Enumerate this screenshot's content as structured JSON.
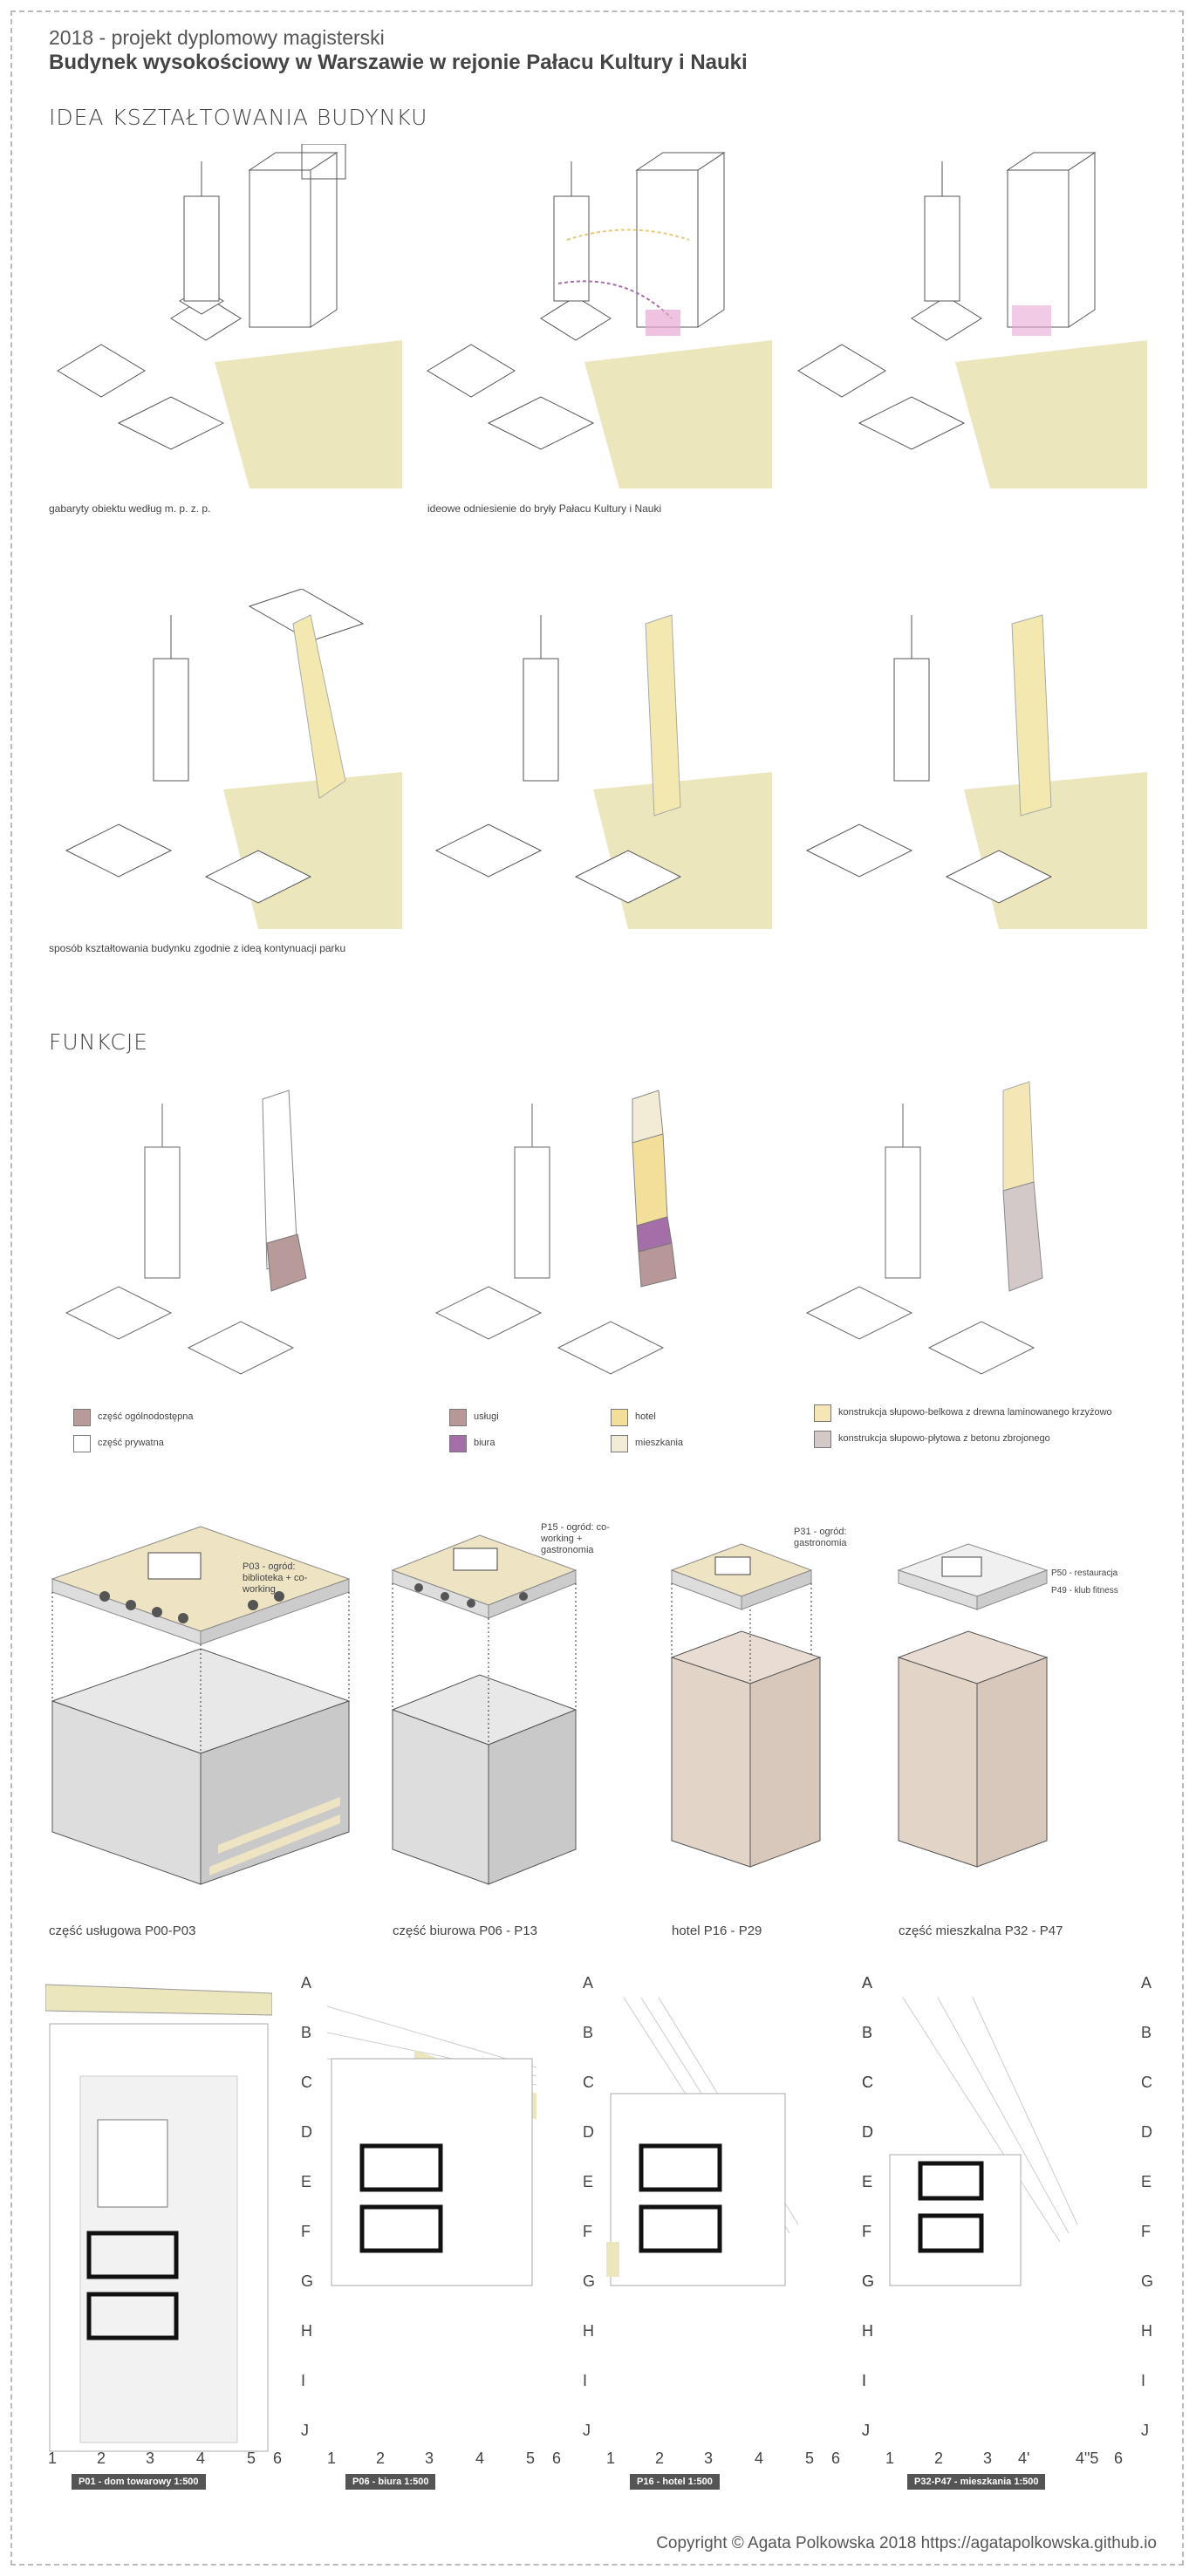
{
  "header": {
    "year_line": "2018 - projekt dyplomowy magisterski",
    "title": "Budynek wysokościowy w Warszawie w rejonie Pałacu Kultury i Nauki"
  },
  "sections": {
    "idea": "IDEA KSZTAŁTOWANIA BUDYNKU",
    "funkcje": "FUNKCJE"
  },
  "idea_captions": {
    "c1": "gabaryty obiektu według m. p. z. p.",
    "c2": "ideowe odniesienie do bryły Pałacu Kultury i Nauki",
    "c3": "sposób kształtowania budynku zgodnie z ideą kontynuacji parku"
  },
  "legend": {
    "publiczna": "część ogólnodostępna",
    "prywatna": "część prywatna",
    "uslugi": "usługi",
    "biura": "biura",
    "hotel": "hotel",
    "mieszkania": "mieszkania",
    "drewno": "konstrukcja słupowo-belkowa z drewna laminowanego krzyżowo",
    "beton": "konstrukcja słupowo-płytowa z betonu zbrojonego"
  },
  "colors": {
    "park": "#ece6bd",
    "publiczna": "#b89a9a",
    "prywatna": "#ffffff",
    "uslugi": "#b79797",
    "biura": "#a46fa8",
    "hotel": "#f3df9a",
    "mieszkania": "#f2ecd7",
    "drewno": "#f5e6b5",
    "beton": "#d3c9c9",
    "roof": "#eee3c3"
  },
  "axo_notes": {
    "n1": "P03 - ogród: biblioteka + co-working",
    "n2": "P15 - ogród: co-working + gastronomia",
    "n3": "P31 - ogród: gastronomia",
    "n4a": "P50 - restauracja",
    "n4b": "P49 - klub fitness"
  },
  "floors": {
    "f1": "część usługowa  P00-P03",
    "f2": "część biurowa  P06 - P13",
    "f3": "hotel  P16 - P29",
    "f4": "część mieszkalna  P32 - P47"
  },
  "grid_letters": [
    "A",
    "B",
    "C",
    "D",
    "E",
    "F",
    "G",
    "H",
    "I",
    "J"
  ],
  "grid_numbers_std": [
    "1",
    "2",
    "3",
    "4",
    "5",
    "6"
  ],
  "grid_numbers_res": [
    "1",
    "2",
    "3",
    "4'",
    "4\"5",
    "6"
  ],
  "plan_labels": {
    "p1": "P01 - dom towarowy 1:500",
    "p2": "P06 - biura 1:500",
    "p3": "P16 - hotel 1:500",
    "p4": "P32-P47 - mieszkania 1:500"
  },
  "copyright": "Copyright © Agata Polkowska 2018 https://agatapolkowska.github.io"
}
